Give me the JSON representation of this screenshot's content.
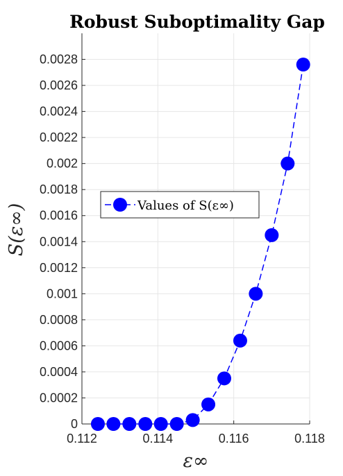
{
  "chart_data": {
    "type": "line",
    "title": "Robust Suboptimality Gap",
    "xlabel": "ε∞",
    "ylabel": "S(ε∞)",
    "xlim": [
      0.112,
      0.118
    ],
    "ylim": [
      0,
      0.003
    ],
    "xticks": [
      0.112,
      0.114,
      0.116,
      0.118
    ],
    "xtick_labels": [
      "0.112",
      "0.114",
      "0.116",
      "0.118"
    ],
    "yticks": [
      0,
      0.0002,
      0.0004,
      0.0006,
      0.0008,
      0.001,
      0.0012,
      0.0014,
      0.0016,
      0.0018,
      0.002,
      0.0022,
      0.0024,
      0.0026,
      0.0028
    ],
    "ytick_labels": [
      "0",
      "0.0002",
      "0.0004",
      "0.0006",
      "0.0008",
      "0.001",
      "0.0012",
      "0.0014",
      "0.0016",
      "0.0018",
      "0.002",
      "0.0022",
      "0.0024",
      "0.0026",
      "0.0028"
    ],
    "grid": true,
    "legend": "center-left",
    "series": [
      {
        "name": "Values of S(ε∞)",
        "color": "#0000ff",
        "line_style": "dashed",
        "marker": "circle",
        "x": [
          0.11242,
          0.11283,
          0.11325,
          0.11367,
          0.11408,
          0.1145,
          0.11492,
          0.11533,
          0.11575,
          0.11617,
          0.11658,
          0.117,
          0.11742,
          0.11783
        ],
        "y": [
          0,
          0,
          0,
          0,
          0,
          0,
          3e-05,
          0.00015,
          0.00035,
          0.00064,
          0.001,
          0.00145,
          0.002,
          0.00276
        ]
      }
    ]
  }
}
